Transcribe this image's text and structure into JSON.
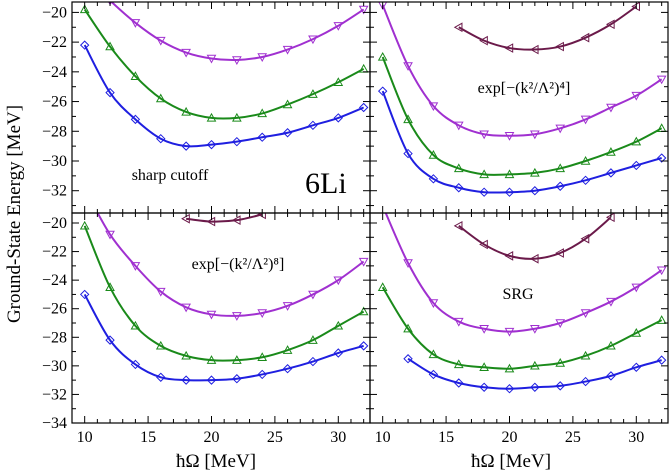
{
  "y_axis_label": "Ground-State Energy [MeV]",
  "x_axis_label": "ħΩ [MeV]",
  "colors": {
    "blue": "#1f1fe0",
    "green": "#1a8a1a",
    "purple": "#a030d0",
    "maroon": "#6b1a4a"
  },
  "chart_data": [
    {
      "type": "line",
      "panel": "top-left",
      "annotation": "sharp cutoff",
      "annotation_big": "6Li",
      "xlim": [
        9,
        32.5
      ],
      "ylim": [
        -33.5,
        -19.3
      ],
      "x_ticks": [],
      "y_ticks": [
        -20,
        -22,
        -24,
        -26,
        -28,
        -30,
        -32
      ],
      "series": [
        {
          "color": "purple",
          "marker": "triangle-down",
          "x": [
            10,
            12,
            14,
            16,
            18,
            20,
            22,
            24,
            26,
            28,
            30,
            32
          ],
          "y": [
            -17.5,
            -19.2,
            -20.7,
            -21.9,
            -22.7,
            -23.1,
            -23.2,
            -23.0,
            -22.5,
            -21.8,
            -20.9,
            -19.8
          ]
        },
        {
          "color": "green",
          "marker": "triangle-up",
          "x": [
            10,
            12,
            14,
            16,
            18,
            20,
            22,
            24,
            26,
            28,
            30,
            32
          ],
          "y": [
            -19.8,
            -22.3,
            -24.3,
            -25.8,
            -26.7,
            -27.1,
            -27.1,
            -26.8,
            -26.2,
            -25.5,
            -24.7,
            -23.8
          ]
        },
        {
          "color": "blue",
          "marker": "diamond",
          "x": [
            10,
            12,
            14,
            16,
            18,
            20,
            22,
            24,
            26,
            28,
            30,
            32
          ],
          "y": [
            -22.2,
            -25.4,
            -27.2,
            -28.5,
            -29.0,
            -28.9,
            -28.7,
            -28.4,
            -28.1,
            -27.6,
            -27.1,
            -26.4
          ]
        }
      ]
    },
    {
      "type": "line",
      "panel": "top-right",
      "annotation": "exp[−(k²/Λ²)⁴]",
      "xlim": [
        9,
        32.5
      ],
      "ylim": [
        -33.5,
        -19.3
      ],
      "x_ticks": [],
      "y_ticks": [],
      "series": [
        {
          "color": "maroon",
          "marker": "triangle-left",
          "x": [
            16,
            18,
            20,
            22,
            24,
            26,
            28,
            30
          ],
          "y": [
            -21.0,
            -21.9,
            -22.4,
            -22.5,
            -22.3,
            -21.7,
            -20.8,
            -19.6
          ]
        },
        {
          "color": "purple",
          "marker": "triangle-down",
          "x": [
            10,
            12,
            14,
            16,
            18,
            20,
            22,
            24,
            26,
            28,
            30,
            32
          ],
          "y": [
            -19.5,
            -23.6,
            -26.3,
            -27.6,
            -28.2,
            -28.3,
            -28.2,
            -27.8,
            -27.2,
            -26.4,
            -25.6,
            -24.5
          ]
        },
        {
          "color": "green",
          "marker": "triangle-up",
          "x": [
            10,
            12,
            14,
            16,
            18,
            20,
            22,
            24,
            26,
            28,
            30,
            32
          ],
          "y": [
            -23.0,
            -27.2,
            -29.6,
            -30.5,
            -30.9,
            -30.9,
            -30.8,
            -30.5,
            -30.0,
            -29.4,
            -28.7,
            -27.8
          ]
        },
        {
          "color": "blue",
          "marker": "diamond",
          "x": [
            10,
            12,
            14,
            16,
            18,
            20,
            22,
            24,
            26,
            28,
            30,
            32
          ],
          "y": [
            -25.3,
            -29.5,
            -31.2,
            -31.8,
            -32.1,
            -32.1,
            -32.0,
            -31.7,
            -31.3,
            -30.8,
            -30.3,
            -29.8
          ]
        }
      ]
    },
    {
      "type": "line",
      "panel": "bottom-left",
      "annotation": "exp[−(k²/Λ²)⁸]",
      "xlim": [
        9,
        32.5
      ],
      "ylim": [
        -34,
        -19.3
      ],
      "x_ticks": [
        10,
        15,
        20,
        25,
        30
      ],
      "y_ticks": [
        -20,
        -22,
        -24,
        -26,
        -28,
        -30,
        -32,
        -34
      ],
      "series": [
        {
          "color": "maroon",
          "marker": "triangle-left",
          "x": [
            18,
            20,
            22,
            24
          ],
          "y": [
            -19.7,
            -19.9,
            -19.8,
            -19.4
          ]
        },
        {
          "color": "purple",
          "marker": "triangle-down",
          "x": [
            10,
            12,
            14,
            16,
            18,
            20,
            22,
            24,
            26,
            28,
            30,
            32
          ],
          "y": [
            -17.6,
            -20.8,
            -23.0,
            -24.8,
            -25.9,
            -26.4,
            -26.5,
            -26.3,
            -25.8,
            -25.0,
            -24.0,
            -22.7
          ]
        },
        {
          "color": "green",
          "marker": "triangle-up",
          "x": [
            10,
            12,
            14,
            16,
            18,
            20,
            22,
            24,
            26,
            28,
            30,
            32
          ],
          "y": [
            -20.2,
            -24.5,
            -27.2,
            -28.6,
            -29.3,
            -29.6,
            -29.6,
            -29.4,
            -28.9,
            -28.2,
            -27.2,
            -26.2
          ]
        },
        {
          "color": "blue",
          "marker": "diamond",
          "x": [
            10,
            12,
            14,
            16,
            18,
            20,
            22,
            24,
            26,
            28,
            30,
            32
          ],
          "y": [
            -25.0,
            -28.2,
            -29.9,
            -30.8,
            -31.0,
            -31.0,
            -30.9,
            -30.6,
            -30.2,
            -29.7,
            -29.1,
            -28.6
          ]
        }
      ]
    },
    {
      "type": "line",
      "panel": "bottom-right",
      "annotation": "SRG",
      "xlim": [
        9,
        32.5
      ],
      "ylim": [
        -34,
        -19.3
      ],
      "x_ticks": [
        10,
        15,
        20,
        25,
        30
      ],
      "y_ticks": [],
      "series": [
        {
          "color": "maroon",
          "marker": "triangle-left",
          "x": [
            16,
            18,
            20,
            22,
            24,
            26,
            28
          ],
          "y": [
            -20.2,
            -21.5,
            -22.3,
            -22.5,
            -22.1,
            -21.1,
            -19.6
          ]
        },
        {
          "color": "purple",
          "marker": "triangle-down",
          "x": [
            10,
            12,
            14,
            16,
            18,
            20,
            22,
            24,
            26,
            28,
            30,
            32
          ],
          "y": [
            -18.8,
            -22.8,
            -25.6,
            -26.9,
            -27.4,
            -27.6,
            -27.4,
            -27.0,
            -26.3,
            -25.5,
            -24.5,
            -23.3
          ]
        },
        {
          "color": "green",
          "marker": "triangle-up",
          "x": [
            10,
            12,
            14,
            16,
            18,
            20,
            22,
            24,
            26,
            28,
            30,
            32
          ],
          "y": [
            -24.5,
            -27.4,
            -29.2,
            -29.9,
            -30.1,
            -30.2,
            -30.0,
            -29.8,
            -29.3,
            -28.6,
            -27.7,
            -26.8
          ]
        },
        {
          "color": "blue",
          "marker": "diamond",
          "x": [
            12,
            14,
            16,
            18,
            20,
            22,
            24,
            26,
            28,
            30,
            32
          ],
          "y": [
            -29.5,
            -30.6,
            -31.2,
            -31.5,
            -31.6,
            -31.5,
            -31.4,
            -31.1,
            -30.7,
            -30.1,
            -29.6
          ]
        }
      ]
    }
  ]
}
